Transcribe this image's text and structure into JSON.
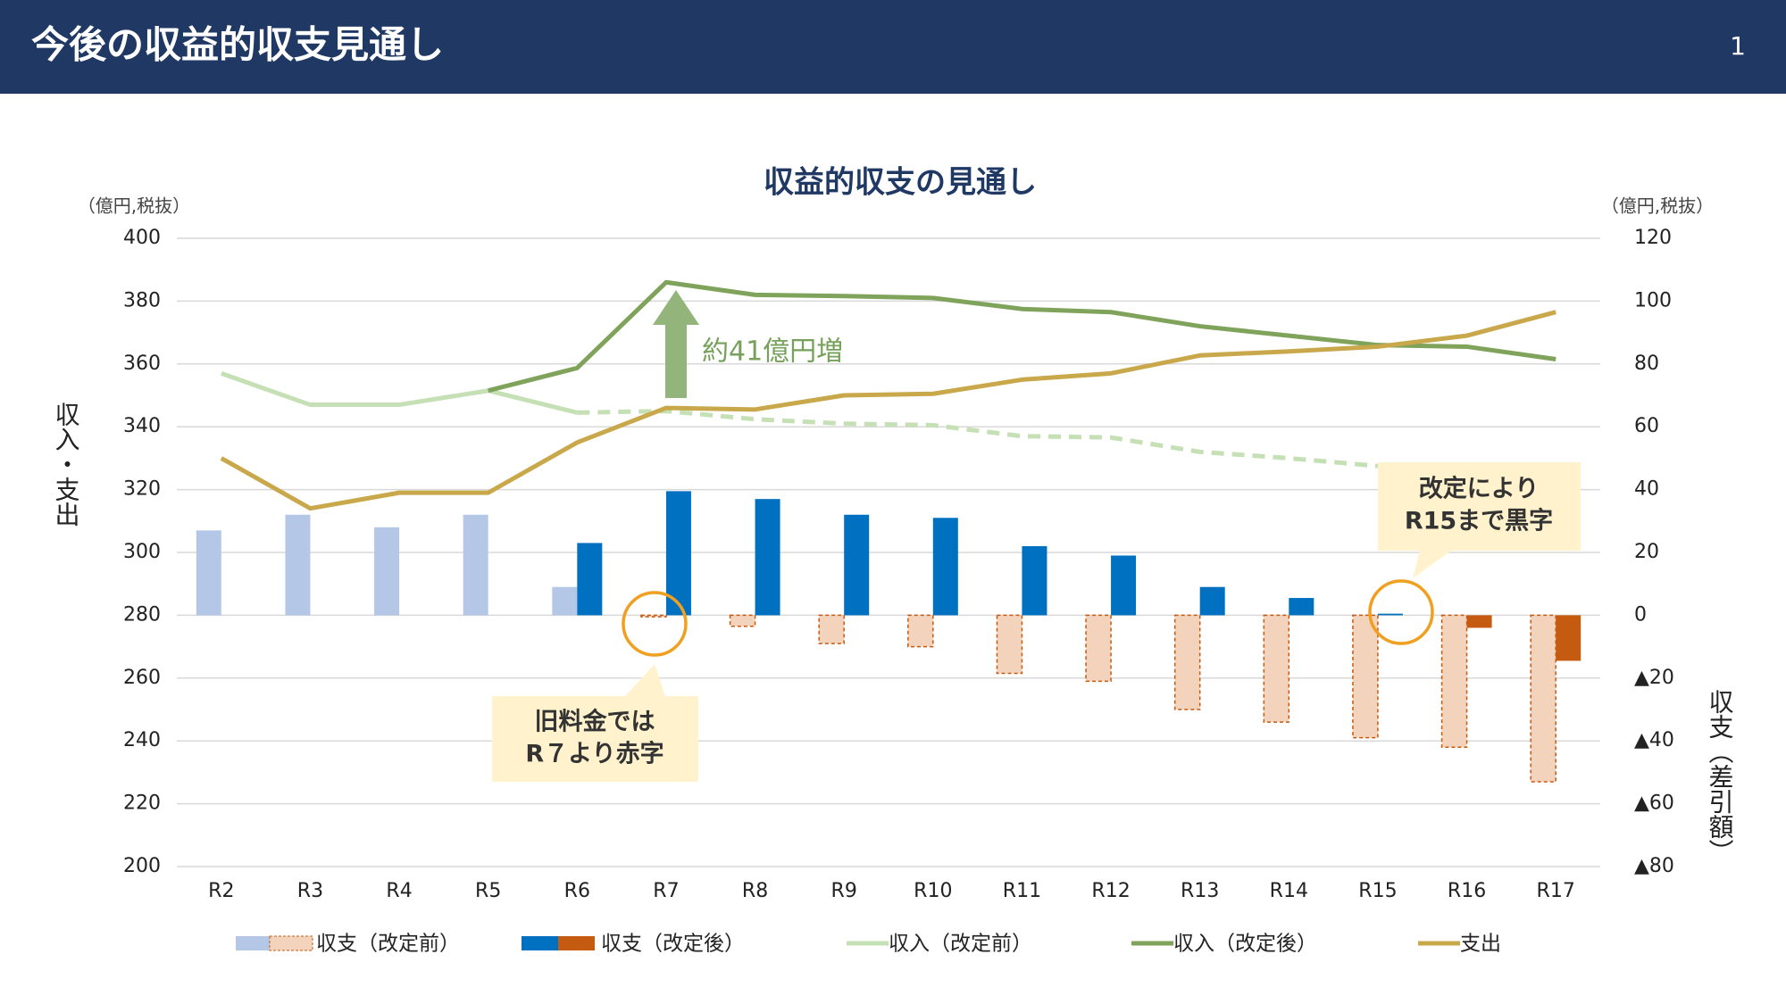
{
  "header": {
    "title": "今後の収益的収支見通し",
    "page": "1"
  },
  "chart_data": {
    "type": "combo",
    "title": "収益的収支の見通し",
    "y_unit": "（億円,税抜）",
    "y2_unit": "（億円,税抜）",
    "ylabel": "収入・支出",
    "y2label": "収支（差引額）",
    "categories": [
      "R2",
      "R3",
      "R4",
      "R5",
      "R6",
      "R7",
      "R8",
      "R9",
      "R10",
      "R11",
      "R12",
      "R13",
      "R14",
      "R15",
      "R16",
      "R17"
    ],
    "ylim": [
      200,
      400
    ],
    "yticks": [
      200,
      220,
      240,
      260,
      280,
      300,
      320,
      340,
      360,
      380,
      400
    ],
    "y2lim": [
      -80,
      120
    ],
    "y2ticks": [
      {
        "value": -80,
        "label": "▲80"
      },
      {
        "value": -60,
        "label": "▲60"
      },
      {
        "value": -40,
        "label": "▲40"
      },
      {
        "value": -20,
        "label": "▲20"
      },
      0,
      20,
      40,
      60,
      80,
      100,
      120
    ],
    "grid": true,
    "series": [
      {
        "name": "収支（改定前）",
        "type": "bar",
        "axis": "y2",
        "color": "#b4c7e7",
        "negative_color": "#f4d3bd",
        "negative_style": "dashed",
        "values": [
          27,
          32,
          28,
          32,
          9,
          -0.5,
          -3.5,
          -9,
          -10,
          -18.5,
          -21,
          -30,
          -34,
          -39,
          -42,
          -53
        ]
      },
      {
        "name": "収支（改定後）",
        "type": "bar",
        "axis": "y2",
        "color": "#0070c0",
        "negative_color": "#c55a11",
        "values": [
          null,
          null,
          null,
          null,
          23,
          39.5,
          37,
          32,
          31,
          22,
          19,
          9,
          5.5,
          0.5,
          -4,
          -14.5
        ]
      },
      {
        "name": "収入（改定前）",
        "type": "line",
        "axis": "y",
        "color": "#c5e0b4",
        "dashed_from": "R6",
        "values": [
          357,
          347,
          347,
          351.5,
          344.5,
          345,
          342.4,
          341,
          340.5,
          337,
          336.6,
          332,
          330,
          327.5,
          null,
          null
        ]
      },
      {
        "name": "収入（改定後）",
        "type": "line",
        "axis": "y",
        "color": "#7fa35a",
        "values": [
          null,
          null,
          null,
          351.5,
          358.7,
          386,
          382,
          381.6,
          381,
          377.5,
          376.5,
          372,
          369,
          366,
          365.5,
          361.5
        ]
      },
      {
        "name": "支出",
        "type": "line",
        "axis": "y",
        "color": "#c9a84c",
        "values": [
          330,
          314,
          319,
          319,
          335,
          346,
          345.5,
          350,
          350.5,
          355,
          357,
          362.7,
          364,
          365.5,
          369,
          376.5
        ]
      }
    ],
    "annotations": [
      {
        "text": "約41億円増"
      },
      {
        "lines": [
          "旧料金では",
          "R７より赤字"
        ]
      },
      {
        "lines": [
          "改定により",
          "R15まで黒字"
        ]
      }
    ]
  }
}
